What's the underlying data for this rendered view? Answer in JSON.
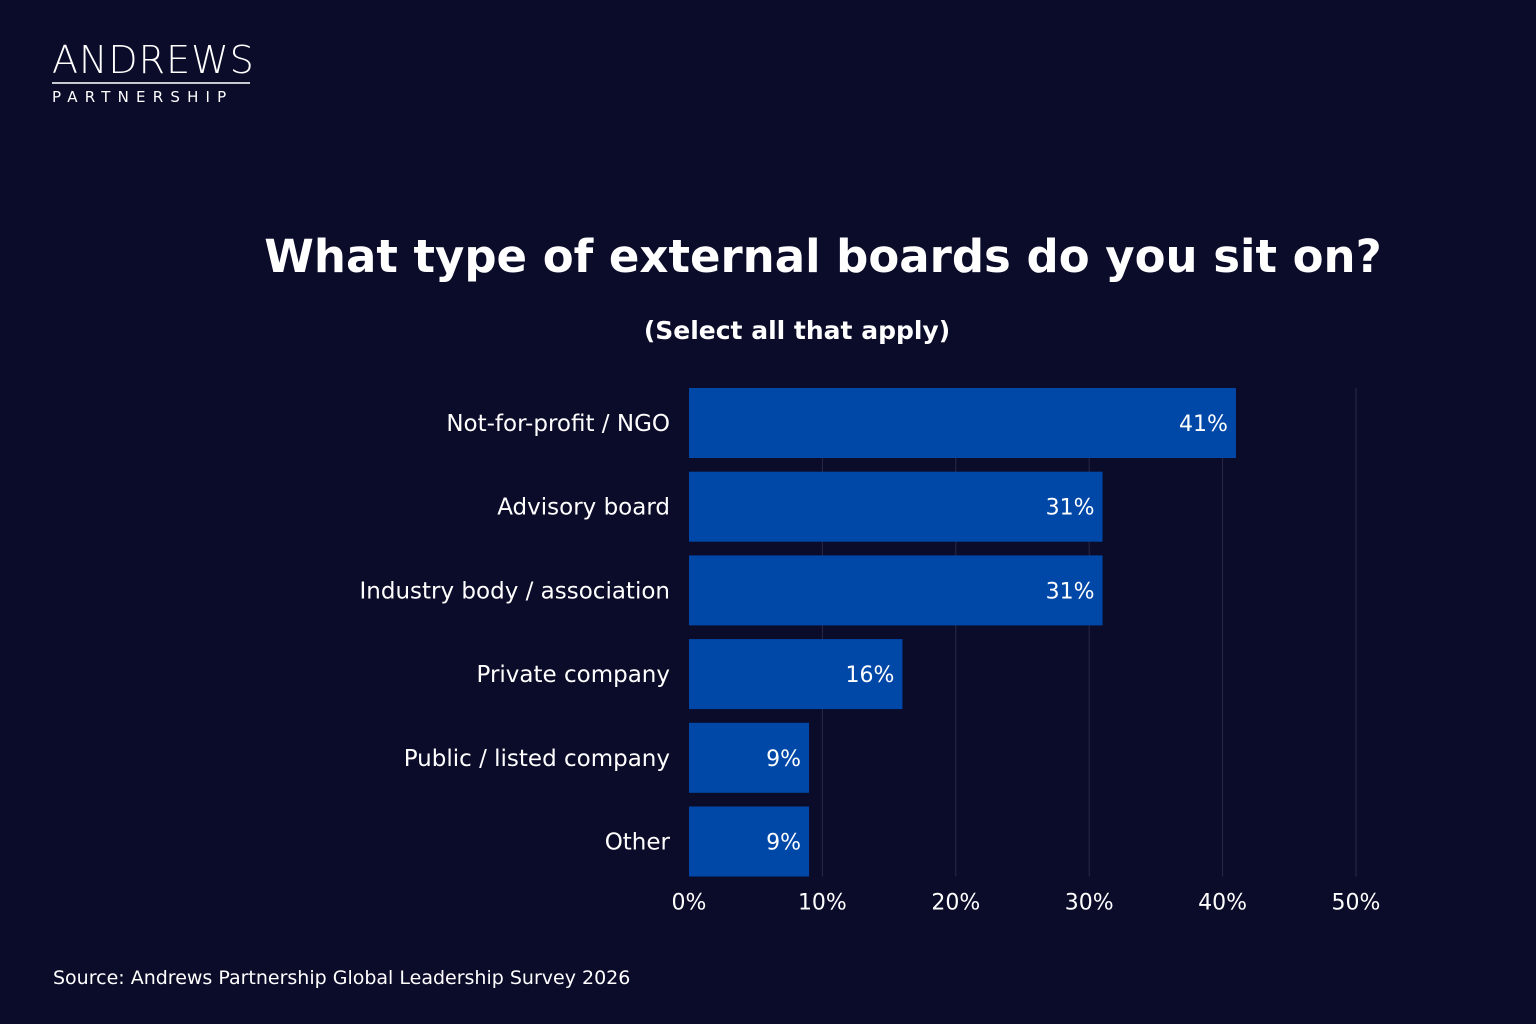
{
  "logo": {
    "main": "ANDREWS",
    "sub": "PARTNERSHIP"
  },
  "source": "Source: Andrews Partnership Global Leadership Survey 2026",
  "colors": {
    "background": "#0b0b2a",
    "bar": "#0048a8",
    "grid": "#2a2a48"
  },
  "chart_data": {
    "type": "bar",
    "orientation": "horizontal",
    "title": "What type of external boards do you sit on?",
    "subtitle": "(Select all that apply)",
    "categories": [
      "Not-for-profit / NGO",
      "Advisory board",
      "Industry body / association",
      "Private company",
      "Public / listed company",
      "Other"
    ],
    "values": [
      41,
      31,
      31,
      16,
      9,
      9
    ],
    "data_labels": [
      "41%",
      "31%",
      "31%",
      "16%",
      "9%",
      "9%"
    ],
    "xlim": [
      0,
      50
    ],
    "xticks": [
      0,
      10,
      20,
      30,
      40,
      50
    ],
    "xtick_labels": [
      "0%",
      "10%",
      "20%",
      "30%",
      "40%",
      "50%"
    ],
    "xlabel": "",
    "ylabel": "",
    "grid": true,
    "legend": "none"
  }
}
